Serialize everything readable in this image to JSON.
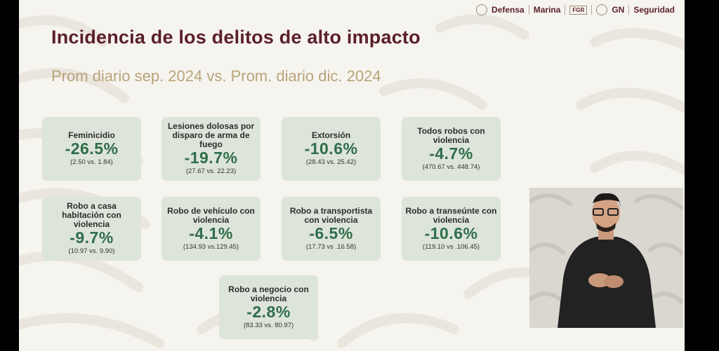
{
  "header": {
    "logos": [
      {
        "label": "Defensa"
      },
      {
        "label": "Marina"
      },
      {
        "label": "FGR"
      },
      {
        "label": "GN"
      },
      {
        "label": "Seguridad"
      }
    ]
  },
  "slide": {
    "title": "Incidencia de los delitos de alto impacto",
    "subtitle": "Prom diario sep. 2024 vs. Prom. diario dic. 2024"
  },
  "cards": [
    {
      "label": "Feminicidio",
      "pct": "-26.5%",
      "cmp": "(2.50 vs. 1.84)"
    },
    {
      "label": "Lesiones dolosas por disparo de arma de fuego",
      "pct": "-19.7%",
      "cmp": "(27.67 vs. 22.23)"
    },
    {
      "label": "Extorsión",
      "pct": "-10.6%",
      "cmp": "(28.43 vs. 25.42)"
    },
    {
      "label": "Todos robos con violencia",
      "pct": "-4.7%",
      "cmp": "(470.67 vs. 448.74)"
    },
    {
      "label": "Robo a casa habitación con violencia",
      "pct": "-9.7%",
      "cmp": "(10.97 vs. 9.90)"
    },
    {
      "label": "Robo de vehículo con violencia",
      "pct": "-4.1%",
      "cmp": "(134.93 vs.129.45)"
    },
    {
      "label": "Robo a transportista con violencia",
      "pct": "-6.5%",
      "cmp": "(17.73 vs .16.58)"
    },
    {
      "label": "Robo a transeúnte con violencia",
      "pct": "-10.6%",
      "cmp": "(119.10 vs .106.45)"
    },
    {
      "label": "Robo a negocio con violencia",
      "pct": "-2.8%",
      "cmp": "(83.33 vs. 80.97)"
    }
  ],
  "colors": {
    "title": "#5a1f2a",
    "subtitle": "#b8a47a",
    "card_bg": "#dde4d9",
    "pct": "#2f6e4a"
  }
}
